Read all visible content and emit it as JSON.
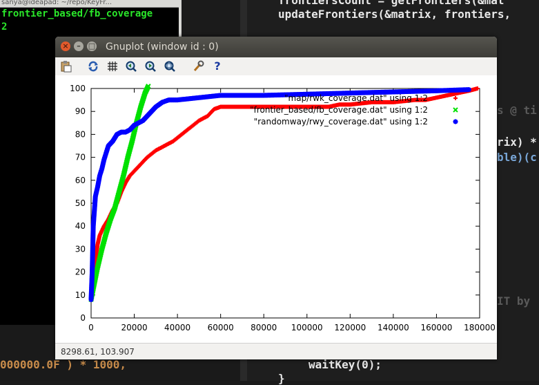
{
  "terminal_left": {
    "title": "sanya@ideapad: ~/repo/KeyFr...",
    "lines": [
      "frontier_based/fb_coverage",
      "2"
    ]
  },
  "editor": {
    "line1": "frontiersCount = getFrontiers(&mat",
    "line2": "updateFrontiers(&matrix, frontiers,",
    "frag_rs": "s @ ti",
    "frag_rix": "rix) *",
    "frag_ble": "ble)(c",
    "frag_it": "IT by",
    "frag_waitkey": "waitKey(0);",
    "frag_brace": "}"
  },
  "bottom_left": {
    "code": "000000.0F ) * 1000,"
  },
  "window": {
    "title": "Gnuplot (window id : 0)",
    "toolbar": [
      "clipboard-icon",
      "replot-icon",
      "grid-icon",
      "zoom-prev-icon",
      "zoom-next-icon",
      "autoscale-icon",
      "settings-icon",
      "help-icon"
    ],
    "status": "8298.61, 103.907"
  },
  "chart_data": {
    "type": "scatter",
    "xlim": [
      0,
      180000
    ],
    "ylim": [
      0,
      100
    ],
    "xticks": [
      "0",
      "20000",
      "40000",
      "60000",
      "80000",
      "100000",
      "120000",
      "140000",
      "160000",
      "180000"
    ],
    "yticks": [
      "0",
      "10",
      "20",
      "30",
      "40",
      "50",
      "60",
      "70",
      "80",
      "90",
      "100"
    ],
    "grid": false,
    "legend_position": "top-right",
    "series": [
      {
        "name": "\"map/rwk_coverage.dat\" using 1:2",
        "color": "#ff0000",
        "marker": "+",
        "points": [
          [
            0,
            8
          ],
          [
            1000,
            16
          ],
          [
            2000,
            25
          ],
          [
            3000,
            32
          ],
          [
            4000,
            36
          ],
          [
            6000,
            40
          ],
          [
            8000,
            43
          ],
          [
            10000,
            47
          ],
          [
            12000,
            50
          ],
          [
            14000,
            55
          ],
          [
            16000,
            59
          ],
          [
            18000,
            62
          ],
          [
            20000,
            64
          ],
          [
            23000,
            67
          ],
          [
            26000,
            70
          ],
          [
            30000,
            73
          ],
          [
            34000,
            75
          ],
          [
            38000,
            77
          ],
          [
            42000,
            80
          ],
          [
            46000,
            83
          ],
          [
            50000,
            86
          ],
          [
            54000,
            88
          ],
          [
            57000,
            91
          ],
          [
            60000,
            92
          ],
          [
            70000,
            92
          ],
          [
            80000,
            92
          ],
          [
            90000,
            92
          ],
          [
            100000,
            92
          ],
          [
            110000,
            92
          ],
          [
            115000,
            93
          ],
          [
            120000,
            93
          ],
          [
            130000,
            94
          ],
          [
            140000,
            94
          ],
          [
            150000,
            95
          ],
          [
            155000,
            95
          ],
          [
            160000,
            96
          ],
          [
            165000,
            97
          ],
          [
            170000,
            98
          ],
          [
            175000,
            99
          ],
          [
            179000,
            100
          ]
        ]
      },
      {
        "name": "\"frontier_based/fb_coverage.dat\" using 1:2",
        "color": "#00e000",
        "marker": "x",
        "points": [
          [
            0,
            8
          ],
          [
            1500,
            15
          ],
          [
            3000,
            22
          ],
          [
            5000,
            30
          ],
          [
            7000,
            37
          ],
          [
            9000,
            43
          ],
          [
            11000,
            48
          ],
          [
            13000,
            55
          ],
          [
            15000,
            62
          ],
          [
            17000,
            70
          ],
          [
            19000,
            77
          ],
          [
            21000,
            85
          ],
          [
            23000,
            92
          ],
          [
            25000,
            98
          ],
          [
            26500,
            101
          ]
        ]
      },
      {
        "name": "\"randomway/rwy_coverage.dat\" using 1:2",
        "color": "#0000ff",
        "marker": "*",
        "points": [
          [
            0,
            8
          ],
          [
            500,
            20
          ],
          [
            1000,
            40
          ],
          [
            2000,
            53
          ],
          [
            3000,
            57
          ],
          [
            4000,
            62
          ],
          [
            5000,
            65
          ],
          [
            6000,
            69
          ],
          [
            7000,
            72
          ],
          [
            8000,
            75
          ],
          [
            10000,
            77
          ],
          [
            12000,
            80
          ],
          [
            14000,
            81
          ],
          [
            16000,
            81
          ],
          [
            18000,
            82
          ],
          [
            20000,
            84
          ],
          [
            22000,
            85
          ],
          [
            24000,
            86
          ],
          [
            26000,
            88
          ],
          [
            28000,
            90
          ],
          [
            30000,
            92
          ],
          [
            33000,
            94
          ],
          [
            36000,
            95
          ],
          [
            40000,
            95
          ],
          [
            50000,
            96
          ],
          [
            60000,
            97
          ],
          [
            80000,
            97
          ],
          [
            100000,
            97.5
          ],
          [
            120000,
            98
          ],
          [
            140000,
            98.5
          ],
          [
            160000,
            99
          ],
          [
            175000,
            99.5
          ]
        ]
      }
    ]
  }
}
